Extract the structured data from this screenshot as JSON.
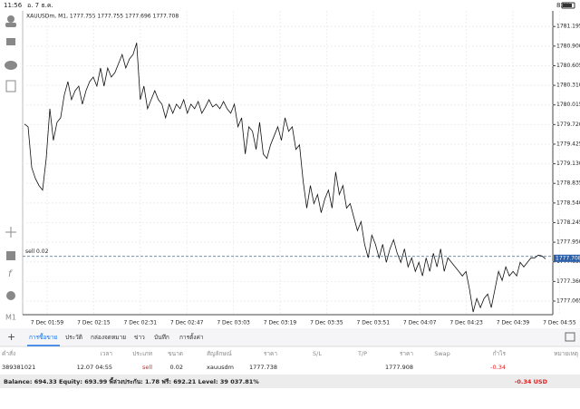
{
  "status_bar": {
    "time": "11:56",
    "date": "อ. 7 ธ.ค.",
    "battery": "83%"
  },
  "chart_data": {
    "type": "line",
    "title": "XAUUSDm, M1, 1777.755 1777.755 1777.696 1777.708",
    "color": "#111111",
    "values": [
      1779.727,
      1779.686,
      1779.074,
      1778.911,
      1778.802,
      1778.734,
      1779.21,
      1779.958,
      1779.482,
      1779.754,
      1779.822,
      1780.162,
      1780.366,
      1780.094,
      1780.23,
      1780.298,
      1780.026,
      1780.23,
      1780.366,
      1780.434,
      1780.298,
      1780.57,
      1780.298,
      1780.57,
      1780.434,
      1780.502,
      1780.638,
      1780.774,
      1780.57,
      1780.706,
      1780.774,
      1780.95,
      1780.094,
      1780.298,
      1779.958,
      1780.094,
      1780.23,
      1780.094,
      1780.026,
      1779.822,
      1780.026,
      1779.89,
      1780.026,
      1779.958,
      1780.094,
      1779.89,
      1780.026,
      1779.958,
      1780.067,
      1779.89,
      1779.985,
      1780.094,
      1779.985,
      1780.026,
      1779.958,
      1780.067,
      1779.958,
      1779.89,
      1780.026,
      1779.686,
      1779.822,
      1779.278,
      1779.686,
      1779.618,
      1779.346,
      1779.754,
      1779.278,
      1779.21,
      1779.414,
      1779.55,
      1779.686,
      1779.482,
      1779.822,
      1779.618,
      1779.686,
      1779.346,
      1779.414,
      1778.87,
      1778.463,
      1778.802,
      1778.531,
      1778.667,
      1778.395,
      1778.599,
      1778.734,
      1778.463,
      1779.006,
      1778.667,
      1778.802,
      1778.463,
      1778.531,
      1778.327,
      1778.123,
      1778.259,
      1777.919,
      1777.715,
      1778.055,
      1777.919,
      1777.715,
      1777.919,
      1777.647,
      1777.851,
      1777.987,
      1777.783,
      1777.647,
      1777.851,
      1777.579,
      1777.715,
      1777.511,
      1777.647,
      1777.443,
      1777.715,
      1777.511,
      1777.783,
      1777.579,
      1777.851,
      1777.511,
      1777.715,
      1777.647,
      1777.579,
      1777.511,
      1777.443,
      1777.511,
      1777.239,
      1776.899,
      1777.103,
      1776.967,
      1777.103,
      1777.171,
      1776.967,
      1777.239,
      1777.511,
      1777.375,
      1777.579,
      1777.443,
      1777.511,
      1777.443,
      1777.647,
      1777.579,
      1777.647,
      1777.715,
      1777.715,
      1777.756,
      1777.742,
      1777.701
    ],
    "xlabels": [
      "7 Dec 01:59",
      "7 Dec 02:15",
      "7 Dec 02:31",
      "7 Dec 02:47",
      "7 Dec 03:03",
      "7 Dec 03:19",
      "7 Dec 03:35",
      "7 Dec 03:51",
      "7 Dec 04:07",
      "7 Dec 04:23",
      "7 Dec 04:39",
      "7 Dec 04:55"
    ],
    "ylim": [
      1776.86,
      1781.43
    ],
    "yticks": [
      1781.195,
      {
        "value": 1780.9,
        "label": "1780.900"
      },
      1780.605,
      {
        "value": 1780.31,
        "label": "1780.310"
      },
      1780.015,
      {
        "value": 1779.72,
        "label": "1779.720"
      },
      1779.425,
      {
        "value": 1779.13,
        "label": "1779.130"
      },
      1778.835,
      {
        "value": 1778.54,
        "label": "1778.540"
      },
      1778.245,
      {
        "value": 1777.95,
        "label": "1777.950"
      },
      1777.655,
      {
        "value": 1777.36,
        "label": "1777.360"
      },
      1777.065
    ],
    "grid": true,
    "order_line": {
      "label": "sell 0.02",
      "price": 1777.738
    },
    "current_price": 1777.708
  },
  "tabs": [
    "การซื้อขาย",
    "ประวัติ",
    "กล่องจดหมาย",
    "ข่าว",
    "บันทึก",
    "การตั้งค่า"
  ],
  "table": {
    "header": [
      "คำสั่ง",
      "เวลา",
      "ประเภท",
      "ขนาด",
      "สัญลักษณ์",
      "ราคา",
      "S/L",
      "T/P",
      "ราคา",
      "Swap",
      "กำไร",
      "หมายเหตุ"
    ],
    "rows": [
      [
        "389381021",
        "12.07 04:55",
        "sell",
        "0.02",
        "xauusdm",
        "1777.738",
        "",
        "",
        "1777.908",
        "",
        "-0.34",
        ""
      ]
    ]
  },
  "footer": {
    "summary": "Balance: 694.33 Equity: 693.99 พี้ล่วงประกัน: 1.78 ฟรี: 692.21 Level: 39 037.81%",
    "profit": "-0.34 USD"
  }
}
